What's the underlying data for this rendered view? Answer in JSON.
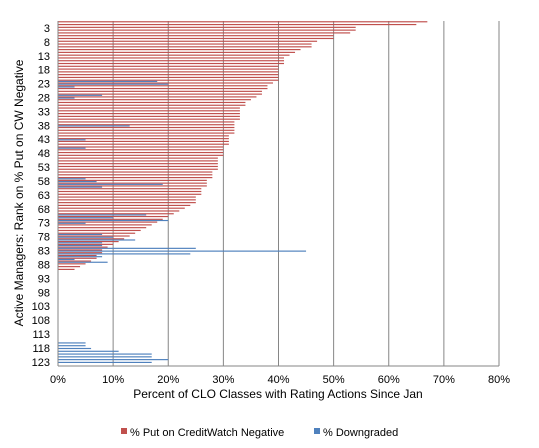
{
  "chart_data": {
    "type": "bar",
    "orientation": "horizontal",
    "title": "",
    "xlabel": "Percent of CLO Classes with Rating Actions Since Jan",
    "ylabel": "Active Managers: Rank on % Put on CW Negative",
    "xlim": [
      0,
      80
    ],
    "x_unit": "%",
    "x_ticks": [
      "0%",
      "10%",
      "20%",
      "30%",
      "40%",
      "50%",
      "60%",
      "70%",
      "80%"
    ],
    "y_tick_labels": [
      "3",
      "8",
      "13",
      "18",
      "23",
      "28",
      "33",
      "38",
      "43",
      "48",
      "53",
      "58",
      "63",
      "68",
      "73",
      "78",
      "83",
      "88",
      "93",
      "98",
      "103",
      "108",
      "113",
      "118",
      "123"
    ],
    "y_tick_ranks": [
      3,
      8,
      13,
      18,
      23,
      28,
      33,
      38,
      43,
      48,
      53,
      58,
      63,
      68,
      73,
      78,
      83,
      88,
      93,
      98,
      103,
      108,
      113,
      118,
      123
    ],
    "grid": "vertical",
    "legend_position": "bottom",
    "categories": [
      1,
      2,
      3,
      4,
      5,
      6,
      7,
      8,
      9,
      10,
      11,
      12,
      13,
      14,
      15,
      16,
      17,
      18,
      19,
      20,
      21,
      22,
      23,
      24,
      25,
      26,
      27,
      28,
      29,
      30,
      31,
      32,
      33,
      34,
      35,
      36,
      37,
      38,
      39,
      40,
      41,
      42,
      43,
      44,
      45,
      46,
      47,
      48,
      49,
      50,
      51,
      52,
      53,
      54,
      55,
      56,
      57,
      58,
      59,
      60,
      61,
      62,
      63,
      64,
      65,
      66,
      67,
      68,
      69,
      70,
      71,
      72,
      73,
      74,
      75,
      76,
      77,
      78,
      79,
      80,
      81,
      82,
      83,
      84,
      85,
      86,
      87,
      88,
      89,
      90,
      91,
      92,
      93,
      94,
      95,
      96,
      97,
      98,
      99,
      100,
      101,
      102,
      103,
      104,
      105,
      106,
      107,
      108,
      109,
      110,
      111,
      112,
      113,
      114,
      115,
      116,
      117,
      118,
      119,
      120,
      121,
      122,
      123,
      124
    ],
    "series": [
      {
        "name": "% Put on CreditWatch Negative",
        "color": "#C0504D",
        "values": [
          67,
          65,
          54,
          54,
          53,
          50,
          50,
          47,
          46,
          46,
          44,
          43,
          42,
          41,
          41,
          41,
          40,
          40,
          40,
          40,
          40,
          40,
          39,
          38,
          38,
          37,
          37,
          36,
          35,
          34,
          34,
          33,
          33,
          33,
          33,
          33,
          32,
          32,
          32,
          32,
          32,
          31,
          31,
          31,
          31,
          30,
          30,
          30,
          30,
          29,
          29,
          29,
          29,
          29,
          28,
          28,
          28,
          27,
          27,
          27,
          26,
          26,
          26,
          25,
          25,
          25,
          24,
          23,
          22,
          21,
          20,
          19,
          18,
          17,
          16,
          15,
          14,
          13,
          12,
          11,
          10,
          9,
          8,
          8,
          7,
          7,
          6,
          5,
          4,
          3,
          0,
          0,
          0,
          0,
          0,
          0,
          0,
          0,
          0,
          0,
          0,
          0,
          0,
          0,
          0,
          0,
          0,
          0,
          0,
          0,
          0,
          0,
          0,
          0,
          0,
          0,
          0,
          0,
          0,
          0,
          0,
          0,
          0,
          0
        ]
      },
      {
        "name": "% Downgraded",
        "color": "#4F81BD",
        "values": [
          0,
          0,
          0,
          0,
          0,
          0,
          0,
          0,
          0,
          0,
          0,
          0,
          0,
          0,
          0,
          0,
          0,
          0,
          0,
          0,
          0,
          18,
          20,
          3,
          0,
          0,
          8,
          3,
          0,
          0,
          0,
          0,
          0,
          0,
          0,
          0,
          0,
          13,
          0,
          0,
          0,
          0,
          5,
          0,
          0,
          5,
          0,
          0,
          0,
          0,
          0,
          0,
          0,
          0,
          0,
          0,
          5,
          7,
          19,
          8,
          0,
          0,
          0,
          0,
          0,
          0,
          0,
          0,
          0,
          16,
          10,
          20,
          5,
          0,
          0,
          0,
          8,
          10,
          14,
          8,
          8,
          25,
          45,
          24,
          8,
          3,
          9,
          0,
          0,
          0,
          0,
          0,
          0,
          0,
          0,
          0,
          0,
          0,
          0,
          0,
          0,
          0,
          0,
          0,
          0,
          0,
          0,
          0,
          0,
          0,
          0,
          0,
          0,
          0,
          0,
          5,
          5,
          6,
          11,
          17,
          17,
          20,
          17,
          0
        ]
      }
    ]
  }
}
